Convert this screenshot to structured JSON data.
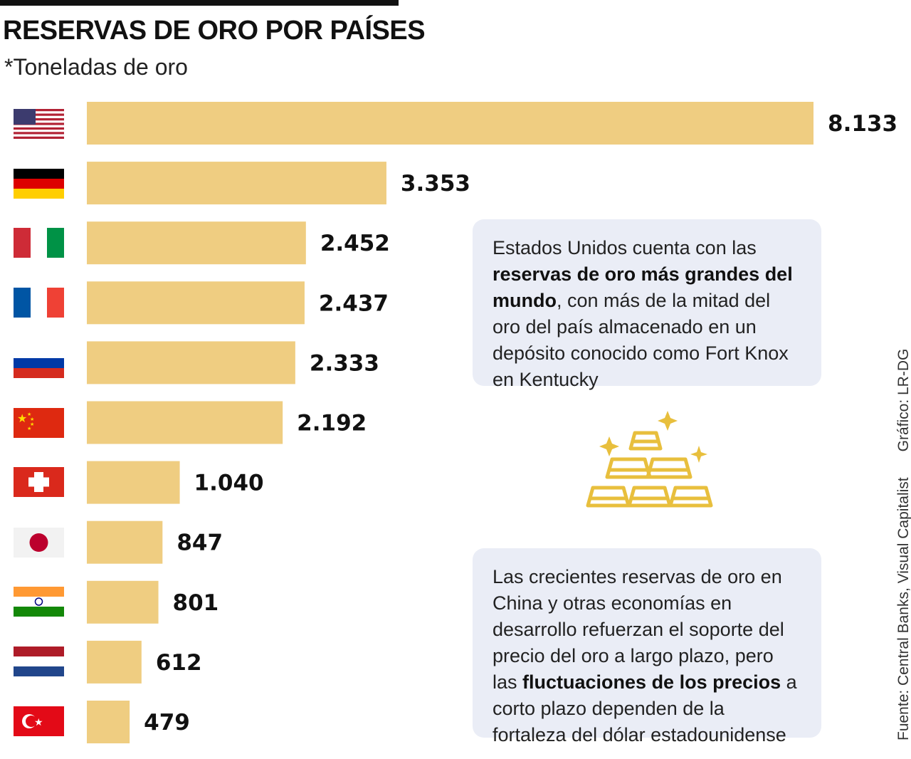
{
  "header": {
    "title": "RESERVAS DE ORO POR PAÍSES",
    "subtitle": "*Toneladas de oro"
  },
  "colors": {
    "bar": "#efcd81",
    "note_background": "#eaedf6",
    "icon": "#e8bf3d"
  },
  "chart_data": {
    "type": "bar",
    "orientation": "horizontal",
    "categories": [
      "us-flag",
      "germany-flag",
      "italy-flag",
      "france-flag",
      "russia-flag",
      "china-flag",
      "switzerland-flag",
      "japan-flag",
      "india-flag",
      "netherlands-flag",
      "turkey-flag"
    ],
    "values": [
      8133,
      3353,
      2452,
      2437,
      2333,
      2192,
      1040,
      847,
      801,
      612,
      479
    ],
    "value_labels": [
      "8.133",
      "3.353",
      "2.452",
      "2.437",
      "2.333",
      "2.192",
      "1.040",
      "847",
      "801",
      "612",
      "479"
    ],
    "title": "RESERVAS DE ORO POR PAÍSES",
    "subtitle": "*Toneladas de oro",
    "xlabel": "",
    "ylabel": "",
    "grid": false
  },
  "notes": {
    "note1": {
      "text_a": "Estados Unidos cuenta con las ",
      "bold": "reservas de oro más grandes del mundo",
      "text_b": ", con más de la mitad del oro del país almacenado en un depósito conocido como Fort Knox en Kentucky"
    },
    "note2": {
      "text_a": "Las crecientes reservas de oro en China y otras economías en desarrollo refuerzan el soporte del precio del oro a largo plazo, pero las ",
      "bold": "fluctuaciones de los precios",
      "text_b": " a corto plazo dependen de la fortaleza del dólar estadounidense"
    }
  },
  "credits": {
    "source": "Fuente: Central Banks, Visual Capitalist",
    "graphic": "Gráfico: LR-DG"
  },
  "icons": [
    "gold-bars-icon"
  ]
}
